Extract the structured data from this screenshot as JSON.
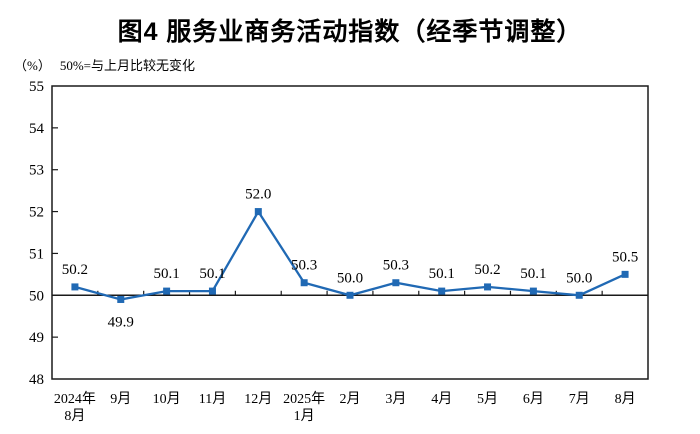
{
  "title": "图4 服务业商务活动指数（经季节调整）",
  "subtitle": {
    "unit": "（%）",
    "note": "50%=与上月比较无变化"
  },
  "chart_data": {
    "type": "line",
    "title": "图4 服务业商务活动指数（经季节调整）",
    "xlabel": "",
    "ylabel": "",
    "unit_note": "（%） 50%=与上月比较无变化",
    "categories": [
      [
        "2024年",
        "8月"
      ],
      [
        "9月"
      ],
      [
        "10月"
      ],
      [
        "11月"
      ],
      [
        "12月"
      ],
      [
        "2025年",
        "1月"
      ],
      [
        "2月"
      ],
      [
        "3月"
      ],
      [
        "4月"
      ],
      [
        "5月"
      ],
      [
        "6月"
      ],
      [
        "7月"
      ],
      [
        "8月"
      ]
    ],
    "values": [
      50.2,
      49.9,
      50.1,
      50.1,
      52.0,
      50.3,
      50.0,
      50.3,
      50.1,
      50.2,
      50.1,
      50.0,
      50.5
    ],
    "label_below_indices": [
      1
    ],
    "ylim": [
      48,
      55
    ],
    "yticks": [
      48,
      49,
      50,
      51,
      52,
      53,
      54,
      55
    ],
    "baseline_value": 50,
    "grid": false,
    "legend": "none",
    "colors": {
      "line": "#2069b4",
      "marker": "#2069b4",
      "axis": "#1a1a1a",
      "text": "#000000"
    }
  }
}
